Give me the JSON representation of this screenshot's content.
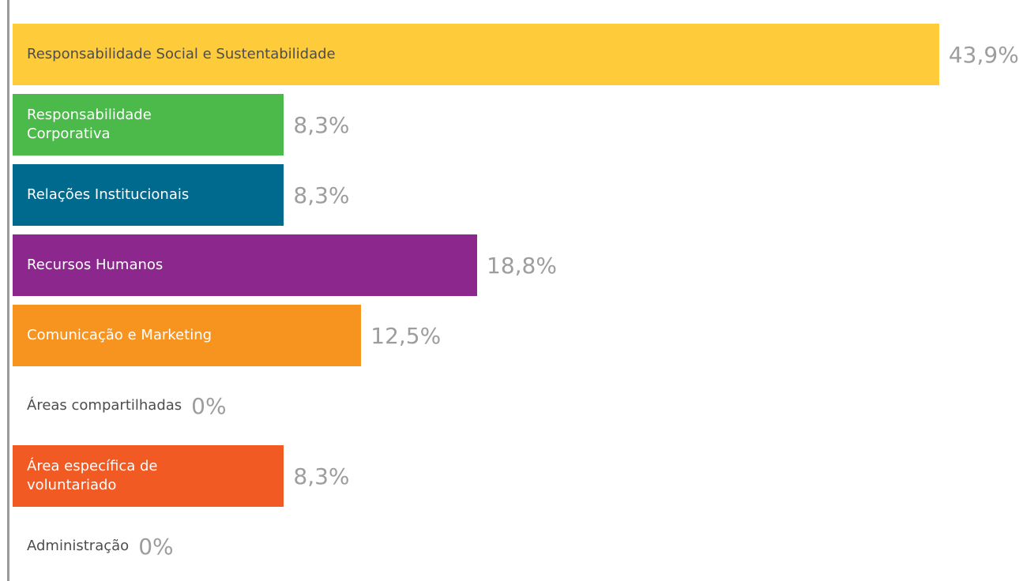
{
  "chart_data": {
    "type": "bar",
    "orientation": "horizontal",
    "categories": [
      "Responsabilidade Social e Sustentabilidade",
      "Responsabilidade Corporativa",
      "Relações Institucionais",
      "Recursos Humanos",
      "Comunicação e Marketing",
      "Áreas compartilhadas",
      "Área específica de voluntariado",
      "Administração"
    ],
    "values": [
      43.9,
      8.3,
      8.3,
      18.8,
      12.5,
      0,
      8.3,
      0
    ],
    "value_labels": [
      "43,9%",
      "8,3%",
      "8,3%",
      "18,8%",
      "12,5%",
      "0%",
      "8,3%",
      "0%"
    ],
    "colors": [
      "#fecb3a",
      "#4cba4a",
      "#006a8e",
      "#8c288d",
      "#f6941f",
      null,
      "#f15a22",
      null
    ]
  }
}
